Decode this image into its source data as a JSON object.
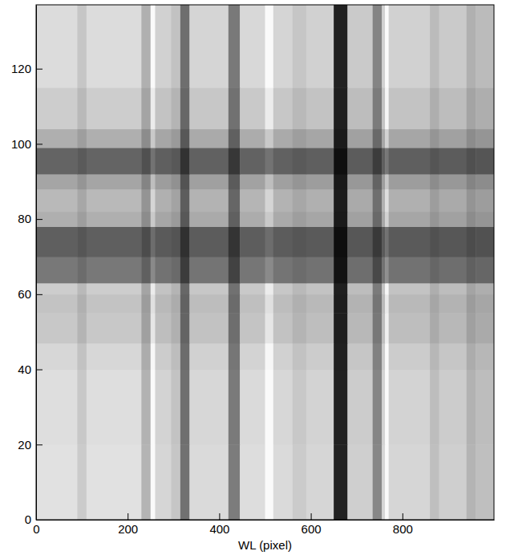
{
  "chart_data": {
    "type": "heatmap",
    "x_label": "WL (pixel)",
    "color": "gray",
    "xlim": [
      0,
      1000
    ],
    "ylim": [
      0,
      137
    ],
    "xticks": [
      0,
      200,
      400,
      600,
      800
    ],
    "yticks": [
      0,
      20,
      40,
      60,
      80,
      100,
      120
    ],
    "zlim": [
      0,
      255
    ],
    "x_edges": [
      0,
      90,
      110,
      230,
      250,
      260,
      295,
      315,
      335,
      420,
      445,
      500,
      518,
      560,
      590,
      650,
      680,
      735,
      755,
      762,
      770,
      860,
      880,
      940,
      960,
      1000
    ],
    "y_edges": [
      0,
      20,
      40,
      47,
      55,
      60,
      63,
      70,
      78,
      82,
      88,
      92,
      99,
      104,
      115,
      137
    ],
    "cells": [
      [
        225,
        203,
        225,
        180,
        250,
        214,
        198,
        113,
        218,
        124,
        221,
        250,
        218,
        203,
        214,
        34,
        207,
        135,
        214,
        250,
        214,
        191,
        207,
        180,
        191
      ],
      [
        222,
        200,
        222,
        178,
        250,
        211,
        195,
        111,
        215,
        122,
        218,
        250,
        215,
        200,
        211,
        33,
        204,
        133,
        211,
        250,
        211,
        189,
        204,
        178,
        189
      ],
      [
        215,
        194,
        215,
        172,
        247,
        204,
        189,
        108,
        209,
        118,
        211,
        247,
        209,
        194,
        204,
        32,
        198,
        129,
        204,
        250,
        204,
        183,
        198,
        172,
        183
      ],
      [
        200,
        180,
        200,
        160,
        230,
        190,
        176,
        100,
        194,
        110,
        196,
        230,
        194,
        180,
        190,
        30,
        184,
        120,
        190,
        240,
        190,
        170,
        184,
        160,
        170
      ],
      [
        195,
        176,
        195,
        156,
        224,
        185,
        172,
        98,
        189,
        107,
        191,
        224,
        189,
        176,
        185,
        29,
        179,
        117,
        185,
        234,
        185,
        166,
        179,
        156,
        166
      ],
      [
        205,
        185,
        205,
        164,
        236,
        195,
        180,
        103,
        199,
        113,
        201,
        236,
        199,
        185,
        195,
        31,
        189,
        123,
        195,
        246,
        195,
        174,
        189,
        164,
        174
      ],
      [
        120,
        108,
        120,
        96,
        138,
        114,
        106,
        60,
        116,
        66,
        118,
        138,
        116,
        108,
        114,
        18,
        110,
        72,
        114,
        144,
        114,
        102,
        110,
        96,
        102
      ],
      [
        95,
        86,
        95,
        76,
        109,
        90,
        84,
        48,
        92,
        52,
        93,
        109,
        92,
        86,
        90,
        14,
        87,
        57,
        90,
        114,
        90,
        81,
        87,
        76,
        81
      ],
      [
        175,
        158,
        175,
        140,
        201,
        166,
        154,
        88,
        170,
        96,
        172,
        201,
        170,
        158,
        166,
        26,
        161,
        105,
        166,
        210,
        166,
        149,
        161,
        140,
        149
      ],
      [
        185,
        167,
        185,
        148,
        213,
        176,
        163,
        93,
        179,
        102,
        181,
        213,
        179,
        167,
        176,
        28,
        170,
        111,
        176,
        222,
        176,
        157,
        170,
        148,
        157
      ],
      [
        165,
        149,
        165,
        132,
        190,
        157,
        145,
        83,
        160,
        91,
        162,
        190,
        160,
        149,
        157,
        25,
        152,
        99,
        157,
        198,
        157,
        140,
        152,
        132,
        140
      ],
      [
        100,
        90,
        100,
        80,
        115,
        95,
        88,
        50,
        97,
        55,
        98,
        115,
        97,
        90,
        95,
        15,
        92,
        60,
        95,
        120,
        95,
        85,
        92,
        80,
        85
      ],
      [
        175,
        158,
        175,
        140,
        201,
        166,
        154,
        88,
        170,
        96,
        172,
        201,
        170,
        158,
        166,
        26,
        161,
        105,
        166,
        210,
        166,
        149,
        161,
        140,
        149
      ],
      [
        205,
        185,
        205,
        164,
        236,
        195,
        180,
        103,
        199,
        113,
        201,
        236,
        199,
        185,
        195,
        31,
        189,
        123,
        195,
        246,
        195,
        174,
        189,
        164,
        174
      ],
      [
        220,
        198,
        220,
        176,
        250,
        209,
        194,
        110,
        213,
        121,
        216,
        250,
        213,
        198,
        209,
        33,
        202,
        132,
        209,
        250,
        209,
        187,
        202,
        176,
        187
      ]
    ]
  }
}
